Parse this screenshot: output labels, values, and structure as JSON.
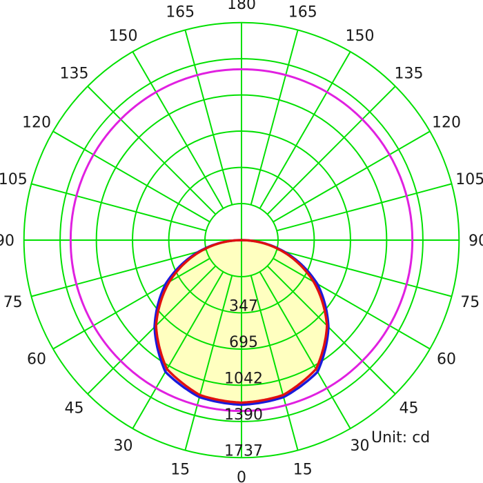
{
  "chart_data": {
    "type": "polar",
    "unit_label": "Unit: cd",
    "radial_ticks": [
      347,
      695,
      1042,
      1390,
      1737
    ],
    "radial_labels": [
      "347",
      "695",
      "1042",
      "1390",
      "1737"
    ],
    "angle_ticks": [
      0,
      15,
      30,
      45,
      60,
      75,
      90,
      105,
      120,
      135,
      150,
      165,
      180
    ],
    "angle_labels": {
      "left": [
        "0",
        "15",
        "30",
        "45",
        "60",
        "75",
        "90",
        "105",
        "120",
        "135",
        "150",
        "165",
        "180"
      ],
      "right": [
        "15",
        "30",
        "45",
        "60",
        "75",
        "90",
        "105",
        "120",
        "135",
        "150",
        "165"
      ]
    },
    "grid_color": "#00e000",
    "series": [
      {
        "color": "#1a1adb",
        "angles": [
          0,
          15,
          30,
          45,
          60,
          75,
          90
        ],
        "values": [
          1580,
          1560,
          1460,
          1180,
          840,
          420,
          0
        ]
      },
      {
        "color": "#e01010",
        "fill": "#ffffc0",
        "angles": [
          0,
          15,
          30,
          45,
          60,
          75,
          90
        ],
        "values": [
          1560,
          1540,
          1430,
          1160,
          800,
          400,
          0
        ]
      },
      {
        "color": "#e020e0",
        "angles": [
          0,
          15,
          30,
          45,
          60,
          75,
          90,
          105,
          120,
          135,
          150,
          165,
          180
        ],
        "values": [
          1640,
          1640,
          1640,
          1640,
          1640,
          1640,
          1640,
          1640,
          1640,
          1640,
          1640,
          1640,
          1640
        ]
      }
    ]
  }
}
